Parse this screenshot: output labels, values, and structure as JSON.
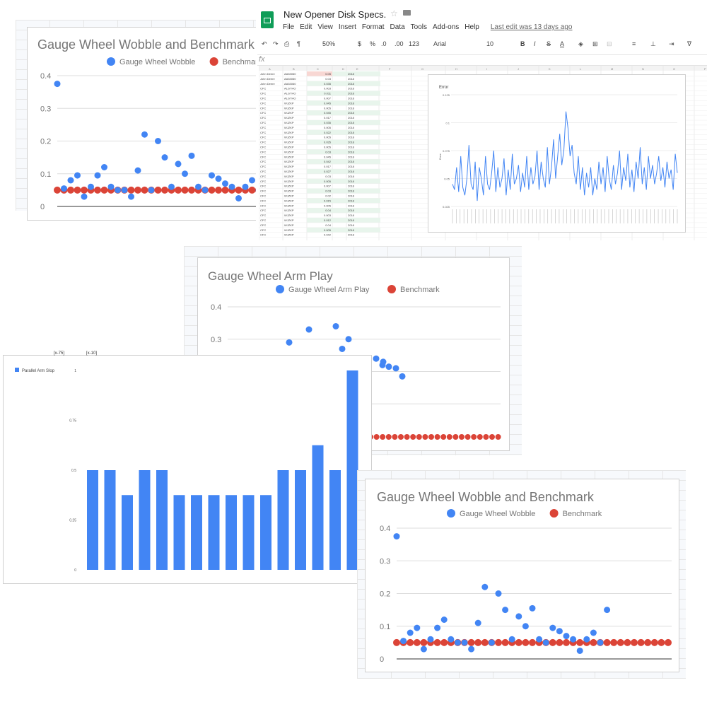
{
  "sheets": {
    "title": "New Opener Disk Specs.",
    "menu": [
      "File",
      "Edit",
      "View",
      "Insert",
      "Format",
      "Data",
      "Tools",
      "Add-ons",
      "Help"
    ],
    "last_edit": "Last edit was 13 days ago",
    "toolbar": {
      "zoom": "50%",
      "currency": "$",
      "percent": "%",
      "dec_less": ".0",
      "dec_more": ".00",
      "format": "123",
      "font": "Arial",
      "size": "10",
      "bold": "B",
      "italic": "I",
      "strike": "S",
      "textcolor": "A"
    },
    "fx": "fx",
    "columns": [
      "A",
      "B",
      "C",
      "D",
      "E",
      "F",
      "G",
      "H",
      "I",
      "J",
      "K",
      "L",
      "M",
      "N",
      "O",
      "P",
      "Q",
      "R",
      "S"
    ],
    "rows": [
      [
        "John Deere",
        "AA53060",
        "0.05",
        "2018"
      ],
      [
        "John Deere",
        "AA53060",
        "0.03",
        "2018"
      ],
      [
        "John Deere",
        "AA53060",
        "0.035",
        "2018"
      ],
      [
        "CFC",
        "ALGTHO",
        "0.003",
        "2018"
      ],
      [
        "CFC",
        "ALGTHO",
        "0.011",
        "2018"
      ],
      [
        "CFC",
        "ALGTHO",
        "0.007",
        "2018"
      ],
      [
        "CFC",
        "WJZKP",
        "0.045",
        "2018"
      ],
      [
        "CFC",
        "WJZKP",
        "0.005",
        "2018"
      ],
      [
        "CFC",
        "WJZKP",
        "0.045",
        "2018"
      ],
      [
        "CFC",
        "WJZKP",
        "0.017",
        "2018"
      ],
      [
        "CFC",
        "WJZKP",
        "0.035",
        "2018"
      ],
      [
        "CFC",
        "WJZKP",
        "0.005",
        "2018"
      ],
      [
        "CFC",
        "WJZKP",
        "0.022",
        "2018"
      ],
      [
        "CFC",
        "WJZKP",
        "0.005",
        "2018"
      ],
      [
        "CFC",
        "WJZKP",
        "0.035",
        "2018"
      ],
      [
        "CFC",
        "WJZKP",
        "0.005",
        "2018"
      ],
      [
        "CFC",
        "WJZKP",
        "0.03",
        "2018"
      ],
      [
        "CFC",
        "WJZKP",
        "0.045",
        "2018"
      ],
      [
        "CFC",
        "WJZKP",
        "0.042",
        "2018"
      ],
      [
        "CFC",
        "WJZKP",
        "0.017",
        "2018"
      ],
      [
        "CFC",
        "WJZKP",
        "0.027",
        "2018"
      ],
      [
        "CFC",
        "WJZKP",
        "0.03",
        "2018"
      ],
      [
        "CFC",
        "WJZKP",
        "0.005",
        "2018"
      ],
      [
        "CFC",
        "WJZKP",
        "0.007",
        "2018"
      ],
      [
        "CFC",
        "WJZKP",
        "0.03",
        "2018"
      ],
      [
        "CFC",
        "WJZKP",
        "0.02",
        "2018"
      ],
      [
        "CFC",
        "WJZKP",
        "0.015",
        "2018"
      ],
      [
        "CFC",
        "WJZKP",
        "0.005",
        "2018"
      ],
      [
        "CFC",
        "WJZKP",
        "0.04",
        "2018"
      ],
      [
        "CFC",
        "WJZKP",
        "0.003",
        "2018"
      ],
      [
        "CFC",
        "WJZKP",
        "0.012",
        "2018"
      ],
      [
        "CFC",
        "WJZKP",
        "0.04",
        "2018"
      ],
      [
        "CFC",
        "WJZKP",
        "0.005",
        "2018"
      ],
      [
        "CFC",
        "WJZKP",
        "0.042",
        "2018"
      ]
    ]
  },
  "colors": {
    "blue": "#4285f4",
    "red": "#db4437",
    "sheets_green": "#0f9d58",
    "grid": "#dddddd"
  },
  "chart_data": [
    {
      "type": "scatter",
      "title": "Gauge Wheel Wobble and Benchmark",
      "legend_position": "top",
      "ylim": [
        0,
        0.4
      ],
      "yticks": [
        "0",
        "0.1",
        "0.2",
        "0.3",
        "0.4"
      ],
      "series": [
        {
          "name": "Gauge Wheel Wobble",
          "color": "#4285f4",
          "values": [
            0.375,
            0.055,
            0.08,
            0.095,
            0.03,
            0.06,
            0.095,
            0.12,
            0.06,
            0.05,
            0.05,
            0.03,
            0.11,
            0.22,
            0.05,
            0.2,
            0.15,
            0.06,
            0.13,
            0.1,
            0.155,
            0.06,
            0.05,
            0.095,
            0.085,
            0.07,
            0.06,
            0.025,
            0.06,
            0.08,
            0.05,
            0.15
          ]
        },
        {
          "name": "Benchmark",
          "color": "#db4437",
          "values": "constant 0.05"
        }
      ]
    },
    {
      "type": "line",
      "title": "Error",
      "ylabel": "Error",
      "yticks": [
        "0.025",
        "0.05",
        "0.075",
        "0.1",
        "0.125"
      ],
      "ylim": [
        0.025,
        0.125
      ],
      "series": [
        {
          "name": "",
          "color": "#4285f4",
          "values": [
            0.045,
            0.04,
            0.06,
            0.038,
            0.07,
            0.042,
            0.035,
            0.05,
            0.08,
            0.045,
            0.04,
            0.065,
            0.03,
            0.06,
            0.05,
            0.035,
            0.07,
            0.045,
            0.04,
            0.055,
            0.075,
            0.038,
            0.06,
            0.042,
            0.05,
            0.068,
            0.035,
            0.058,
            0.04,
            0.072,
            0.045,
            0.05,
            0.062,
            0.038,
            0.055,
            0.042,
            0.07,
            0.04,
            0.06,
            0.045,
            0.052,
            0.075,
            0.04,
            0.065,
            0.05,
            0.042,
            0.078,
            0.045,
            0.06,
            0.085,
            0.05,
            0.07,
            0.09,
            0.062,
            0.075,
            0.11,
            0.095,
            0.07,
            0.08,
            0.055,
            0.045,
            0.07,
            0.04,
            0.06,
            0.035,
            0.055,
            0.042,
            0.06,
            0.035,
            0.05,
            0.04,
            0.065,
            0.045,
            0.06,
            0.038,
            0.07,
            0.05,
            0.04,
            0.062,
            0.045,
            0.055,
            0.075,
            0.04,
            0.06,
            0.048,
            0.072,
            0.042,
            0.058,
            0.038,
            0.065,
            0.05,
            0.078,
            0.045,
            0.06,
            0.04,
            0.07,
            0.05,
            0.062,
            0.045,
            0.055,
            0.07,
            0.048,
            0.06,
            0.042,
            0.065,
            0.05,
            0.058,
            0.04,
            0.072,
            0.055
          ]
        }
      ]
    },
    {
      "type": "scatter",
      "title": "Gauge Wheel Arm Play",
      "legend_position": "top",
      "ylim": [
        0,
        0.4
      ],
      "yticks": [
        "0.3",
        "0.4"
      ],
      "series": [
        {
          "name": "Gauge Wheel Arm Play",
          "color": "#4285f4",
          "values": [
            0.29,
            0.33,
            0.34,
            0.27,
            0.3,
            0.24,
            0.22,
            0.215,
            0.21,
            0.23,
            0.185
          ]
        },
        {
          "name": "Benchmark",
          "color": "#db4437",
          "values": "constant 0"
        }
      ]
    },
    {
      "type": "bar",
      "title": "",
      "legend_position": "top-left",
      "ylim": [
        0,
        1
      ],
      "yticks": [
        "0",
        "0.25",
        "0.5",
        "0.75",
        "1"
      ],
      "series": [
        {
          "name": "Parallel Arm Slop",
          "color": "#4285f4",
          "values": [
            0.5,
            0.5,
            0.375,
            0.5,
            0.5,
            0.375,
            0.375,
            0.375,
            0.375,
            0.375,
            0.375,
            0.5,
            0.5,
            0.625,
            0.5,
            1.0
          ]
        }
      ],
      "header_labels": [
        "[x-75]",
        "[x-10]"
      ]
    },
    {
      "type": "scatter",
      "title": "Gauge Wheel Wobble and Benchmark",
      "legend_position": "top",
      "ylim": [
        0,
        0.4
      ],
      "yticks": [
        "0",
        "0.1",
        "0.2",
        "0.3",
        "0.4"
      ],
      "series": [
        {
          "name": "Gauge Wheel Wobble",
          "color": "#4285f4",
          "values": [
            0.375,
            0.055,
            0.08,
            0.095,
            0.03,
            0.06,
            0.095,
            0.12,
            0.06,
            0.05,
            0.05,
            0.03,
            0.11,
            0.22,
            0.05,
            0.2,
            0.15,
            0.06,
            0.13,
            0.1,
            0.155,
            0.06,
            0.05,
            0.095,
            0.085,
            0.07,
            0.06,
            0.025,
            0.06,
            0.08,
            0.05,
            0.15
          ]
        },
        {
          "name": "Benchmark",
          "color": "#db4437",
          "values": "constant 0.05"
        }
      ]
    }
  ]
}
